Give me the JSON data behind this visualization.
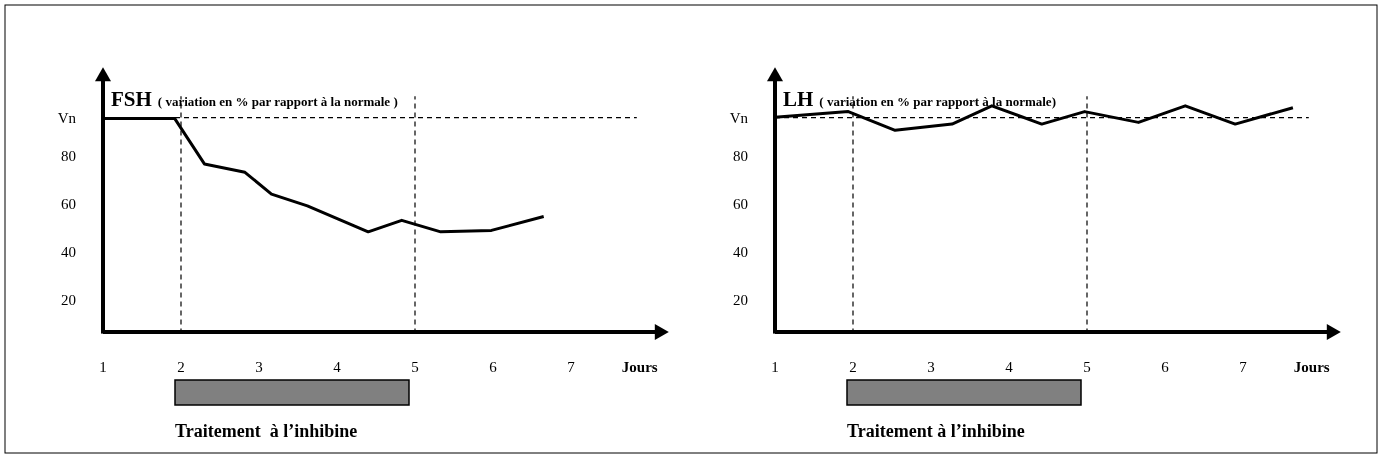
{
  "chart_data": [
    {
      "type": "line",
      "title": "FSH",
      "subtitle": "( variation en % par rapport à la normale )",
      "xlabel": "Jours",
      "x": [
        1.02,
        1.92,
        2.3,
        2.82,
        3.16,
        3.62,
        4.4,
        4.83,
        5.33,
        5.98,
        6.65
      ],
      "series": [
        {
          "color": "#000000",
          "values": [
            95.6,
            95.6,
            76.7,
            73.2,
            64.1,
            59.2,
            48.4,
            53.2,
            48.4,
            49.0,
            54.8
          ]
        }
      ],
      "xlim": [
        1,
        8.1
      ],
      "xticks": [
        1,
        2,
        3,
        4,
        5,
        6,
        7
      ],
      "ylim": [
        6,
        112
      ],
      "yticks": [
        {
          "value": 96,
          "label": "Vn"
        },
        80,
        60,
        40,
        20
      ],
      "ref_lines": [
        {
          "axis": "y",
          "value": 96,
          "color": "#000000",
          "line_style": "dashed"
        },
        {
          "axis": "x",
          "value": 2,
          "color": "#000000",
          "line_style": "dashed"
        },
        {
          "axis": "x",
          "value": 5,
          "color": "#000000",
          "line_style": "dashed"
        }
      ],
      "annotations": [
        "Traitement  à l’inhibine"
      ],
      "grid": false
    },
    {
      "type": "line",
      "title": "LH",
      "subtitle": "( variation en % par rapport à la normale)",
      "xlabel": "Jours",
      "x": [
        1.0,
        1.94,
        2.54,
        3.27,
        3.78,
        4.42,
        4.97,
        5.66,
        6.26,
        6.9,
        7.64
      ],
      "series": [
        {
          "color": "#000000",
          "values": [
            96.1,
            98.5,
            90.7,
            93.3,
            100.9,
            93.3,
            98.5,
            94.0,
            100.9,
            93.3,
            100.1
          ]
        }
      ],
      "xlim": [
        1,
        8.1
      ],
      "xticks": [
        1,
        2,
        3,
        4,
        5,
        6,
        7
      ],
      "ylim": [
        6,
        112
      ],
      "yticks": [
        {
          "value": 96,
          "label": "Vn"
        },
        80,
        60,
        40,
        20
      ],
      "ref_lines": [
        {
          "axis": "y",
          "value": 96,
          "color": "#000000",
          "line_style": "dashed"
        },
        {
          "axis": "x",
          "value": 2,
          "color": "#000000",
          "line_style": "dashed"
        },
        {
          "axis": "x",
          "value": 5,
          "color": "#000000",
          "line_style": "dashed"
        }
      ],
      "annotations": [
        "Traitement à l’inhibine"
      ],
      "grid": false
    }
  ]
}
